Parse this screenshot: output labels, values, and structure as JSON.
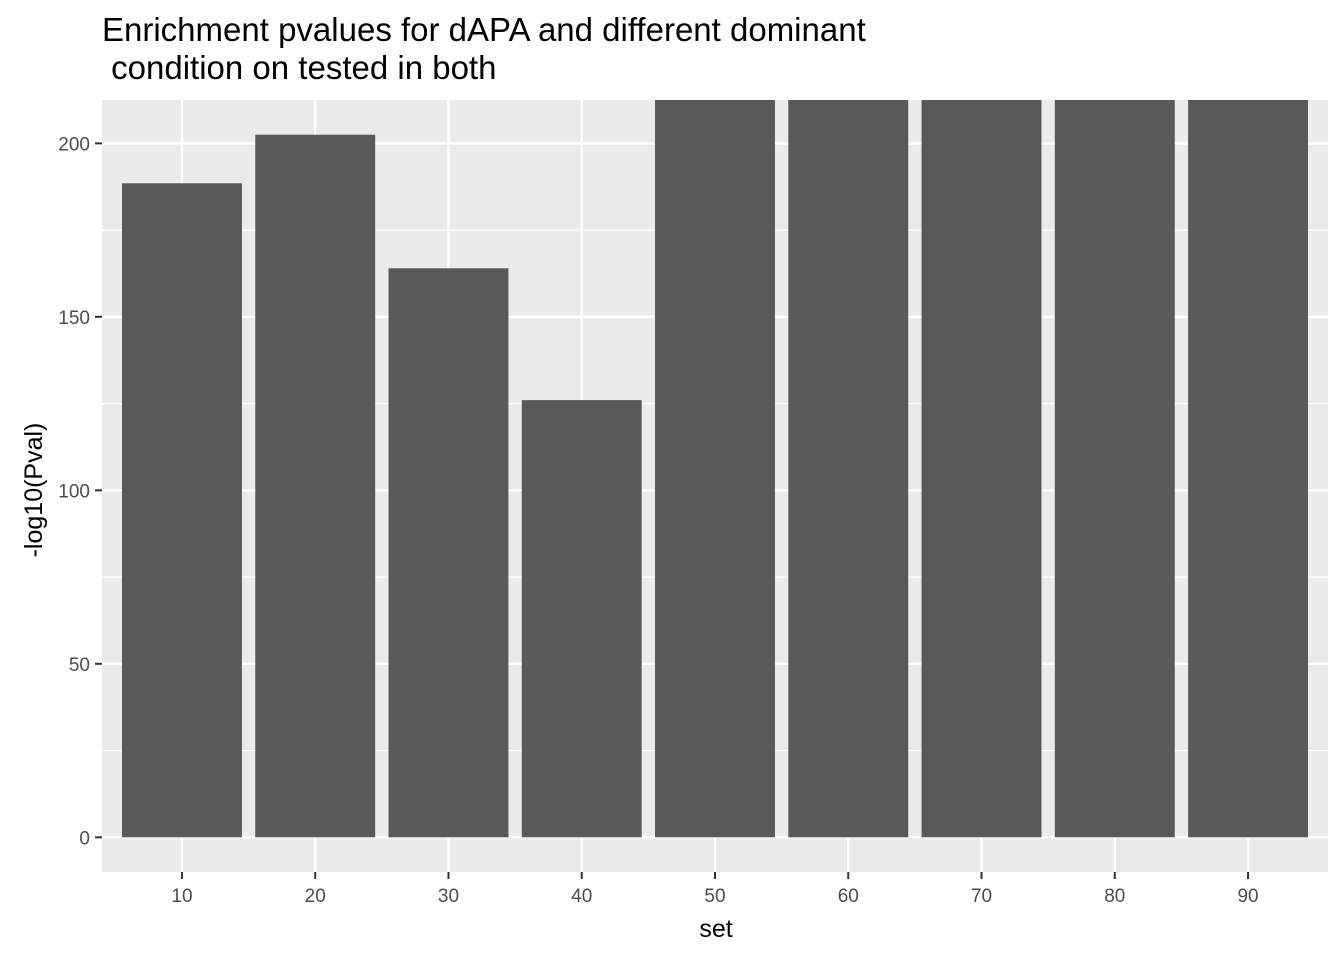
{
  "chart_data": {
    "type": "bar",
    "title_lines": [
      "Enrichment pvalues for dAPA and different dominant",
      " condition on tested in both"
    ],
    "xlabel": "set",
    "ylabel": "-log10(Pval)",
    "categories": [
      "10",
      "20",
      "30",
      "40",
      "50",
      "60",
      "70",
      "80",
      "90"
    ],
    "values": [
      188.5,
      202.5,
      164,
      126,
      212.5,
      212.5,
      212.5,
      212.5,
      212.5
    ],
    "values_clipped_at_top": [
      false,
      false,
      false,
      false,
      true,
      true,
      true,
      true,
      true
    ],
    "ylim": [
      -10,
      212.5
    ],
    "yticks": [
      "0",
      "50",
      "100",
      "150",
      "200"
    ],
    "ytick_values": [
      0,
      50,
      100,
      150,
      200
    ],
    "grid": true,
    "colors": {
      "bar": "#595959",
      "panel": "#ebebeb",
      "grid": "#ffffff",
      "axis_text": "#4d4d4d",
      "tick": "#333333"
    }
  }
}
